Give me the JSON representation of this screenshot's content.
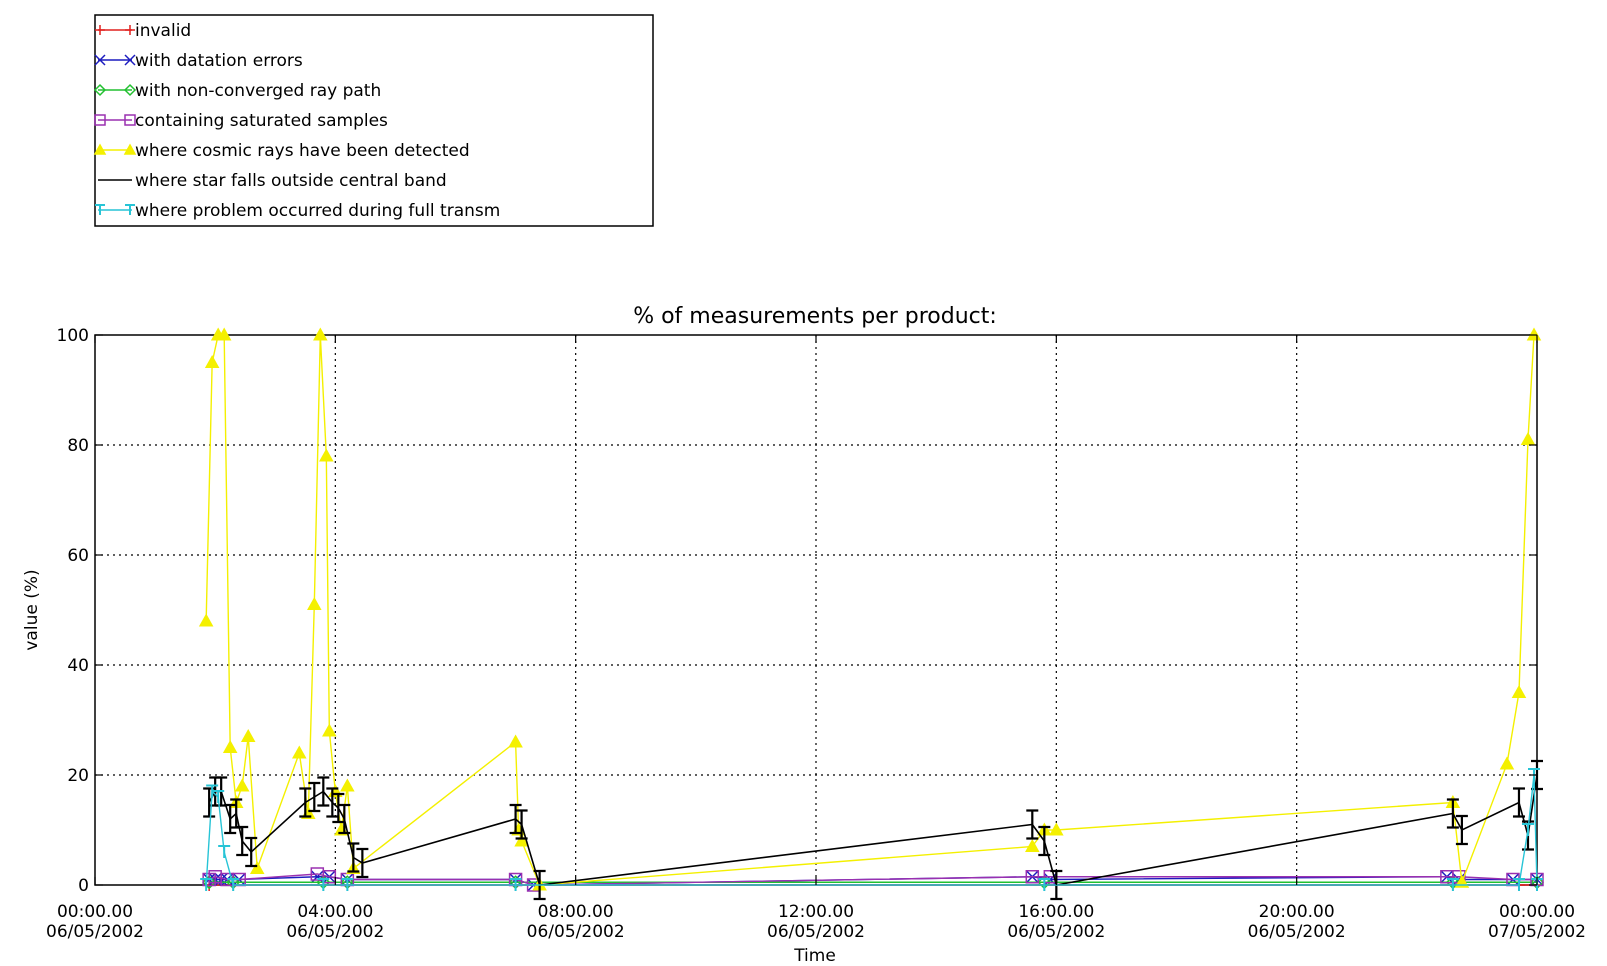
{
  "chart_data": {
    "type": "line",
    "title": "% of measurements per product:",
    "xlabel": "Time",
    "ylabel": "value (%)",
    "ylim": [
      0,
      100
    ],
    "xlim_hours": [
      0,
      24
    ],
    "grid": true,
    "legend_position": "top-left, outside plot",
    "x_ticks": [
      {
        "line1": "00:00.00",
        "line2": "06/05/2002"
      },
      {
        "line1": "04:00.00",
        "line2": "06/05/2002"
      },
      {
        "line1": "08:00.00",
        "line2": "06/05/2002"
      },
      {
        "line1": "12:00.00",
        "line2": "06/05/2002"
      },
      {
        "line1": "16:00.00",
        "line2": "06/05/2002"
      },
      {
        "line1": "20:00.00",
        "line2": "06/05/2002"
      },
      {
        "line1": "00:00.00",
        "line2": "07/05/2002"
      }
    ],
    "y_ticks": [
      "0",
      "20",
      "40",
      "60",
      "80",
      "100"
    ],
    "series": [
      {
        "name": "invalid",
        "color": "#e0201f",
        "marker": "plus",
        "points": [
          [
            1.9,
            0
          ],
          [
            2.3,
            0
          ],
          [
            3.8,
            0
          ],
          [
            4.2,
            0
          ],
          [
            7.0,
            0
          ],
          [
            15.8,
            0
          ],
          [
            22.6,
            0
          ],
          [
            23.7,
            0
          ],
          [
            24.0,
            0
          ]
        ]
      },
      {
        "name": "with datation errors",
        "color": "#1c1cbf",
        "marker": "cross",
        "points": [
          [
            1.9,
            1
          ],
          [
            2.0,
            1
          ],
          [
            2.1,
            1
          ],
          [
            2.2,
            1
          ],
          [
            2.4,
            1
          ],
          [
            3.7,
            1.5
          ],
          [
            3.9,
            1.5
          ],
          [
            4.2,
            1
          ],
          [
            7.0,
            1
          ],
          [
            7.3,
            0
          ],
          [
            15.6,
            1.5
          ],
          [
            15.9,
            1
          ],
          [
            22.5,
            1.5
          ],
          [
            22.7,
            1
          ],
          [
            23.6,
            1
          ],
          [
            24.0,
            1
          ]
        ]
      },
      {
        "name": "with non-converged ray path",
        "color": "#22c030",
        "marker": "diamond",
        "points": [
          [
            1.9,
            0.5
          ],
          [
            2.3,
            0.5
          ],
          [
            3.8,
            0.5
          ],
          [
            4.2,
            0.5
          ],
          [
            7.0,
            0.5
          ],
          [
            15.8,
            0.5
          ],
          [
            22.6,
            0.5
          ],
          [
            24.0,
            0.5
          ]
        ]
      },
      {
        "name": "containing saturated samples",
        "color": "#9a30b0",
        "marker": "square",
        "points": [
          [
            1.9,
            1
          ],
          [
            2.0,
            1.5
          ],
          [
            2.2,
            1
          ],
          [
            2.4,
            1
          ],
          [
            3.7,
            2
          ],
          [
            3.9,
            1.5
          ],
          [
            4.2,
            1
          ],
          [
            7.0,
            1
          ],
          [
            7.3,
            0
          ],
          [
            15.6,
            1.5
          ],
          [
            15.9,
            1.5
          ],
          [
            22.5,
            1.5
          ],
          [
            22.7,
            1.5
          ],
          [
            23.6,
            1
          ],
          [
            24.0,
            1
          ]
        ]
      },
      {
        "name": "where cosmic rays have been detected",
        "color": "#f4f000",
        "marker": "triangle",
        "points": [
          [
            1.85,
            48
          ],
          [
            1.95,
            95
          ],
          [
            2.05,
            100
          ],
          [
            2.15,
            100
          ],
          [
            2.25,
            25
          ],
          [
            2.35,
            15
          ],
          [
            2.45,
            18
          ],
          [
            2.55,
            27
          ],
          [
            2.7,
            3
          ],
          [
            3.4,
            24
          ],
          [
            3.55,
            13
          ],
          [
            3.65,
            51
          ],
          [
            3.75,
            100
          ],
          [
            3.85,
            78
          ],
          [
            3.9,
            28
          ],
          [
            4.0,
            17
          ],
          [
            4.1,
            10
          ],
          [
            4.2,
            18
          ],
          [
            4.3,
            3
          ],
          [
            7.0,
            26
          ],
          [
            7.05,
            10
          ],
          [
            7.1,
            8
          ],
          [
            7.4,
            0
          ],
          [
            15.6,
            7
          ],
          [
            15.8,
            10
          ],
          [
            16.0,
            10
          ],
          [
            22.6,
            15
          ],
          [
            22.75,
            0.5
          ],
          [
            23.5,
            22
          ],
          [
            23.7,
            35
          ],
          [
            23.85,
            81
          ],
          [
            23.95,
            100
          ]
        ]
      },
      {
        "name": "where star falls outside central band",
        "color": "#000000",
        "marker": "errorbar",
        "points": [
          [
            1.9,
            15
          ],
          [
            2.0,
            17
          ],
          [
            2.1,
            17
          ],
          [
            2.25,
            12
          ],
          [
            2.35,
            13
          ],
          [
            2.45,
            8
          ],
          [
            2.6,
            6
          ],
          [
            3.5,
            15
          ],
          [
            3.65,
            16
          ],
          [
            3.8,
            17
          ],
          [
            3.95,
            15
          ],
          [
            4.05,
            14
          ],
          [
            4.15,
            12
          ],
          [
            4.3,
            5
          ],
          [
            4.45,
            4
          ],
          [
            7.0,
            12
          ],
          [
            7.1,
            11
          ],
          [
            7.4,
            0
          ],
          [
            15.6,
            11
          ],
          [
            15.8,
            8
          ],
          [
            16.0,
            0
          ],
          [
            22.6,
            13
          ],
          [
            22.75,
            10
          ],
          [
            23.7,
            15
          ],
          [
            23.85,
            9
          ],
          [
            24.0,
            20
          ]
        ]
      },
      {
        "name": "where problem occurred during full transm",
        "color": "#27c4d6",
        "marker": "bar",
        "points": [
          [
            1.85,
            0
          ],
          [
            1.95,
            17
          ],
          [
            2.05,
            16
          ],
          [
            2.15,
            6
          ],
          [
            2.3,
            0
          ],
          [
            3.8,
            0
          ],
          [
            4.2,
            0
          ],
          [
            7.0,
            0
          ],
          [
            15.8,
            0
          ],
          [
            22.6,
            0
          ],
          [
            23.7,
            0
          ],
          [
            23.85,
            10
          ],
          [
            23.95,
            20
          ],
          [
            24.0,
            0
          ]
        ]
      }
    ]
  }
}
